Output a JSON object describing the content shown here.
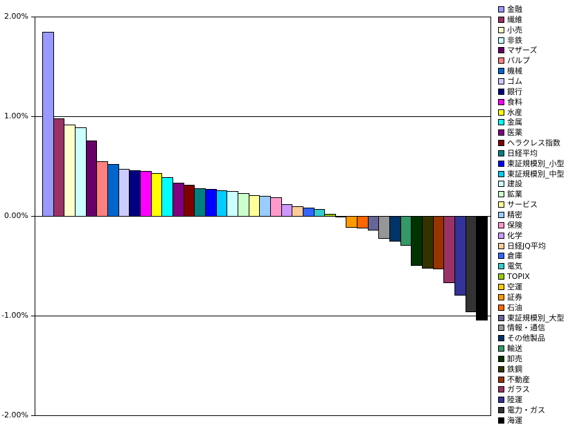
{
  "colors": {
    "background": "#FFFFFF",
    "plot_border": "#000000",
    "gridline": "#000000",
    "text": "#000000"
  },
  "axis": {
    "ticks": [
      {
        "label": "2.00%",
        "value": 2
      },
      {
        "label": "1.00%",
        "value": 1
      },
      {
        "label": "0.00%",
        "value": 0
      },
      {
        "label": "-1.00%",
        "value": -1
      },
      {
        "label": "-2.00%",
        "value": -2
      }
    ]
  },
  "chart_data": {
    "type": "bar",
    "title": "",
    "xlabel": "",
    "ylabel": "",
    "unit": "%",
    "ylim": [
      -2,
      2
    ],
    "grid": true,
    "legend_position": "right",
    "series": [
      {
        "name": "金融",
        "value": 1.85,
        "color": "#9999FF"
      },
      {
        "name": "繊維",
        "value": 0.98,
        "color": "#993366"
      },
      {
        "name": "小売",
        "value": 0.92,
        "color": "#FFFFCC"
      },
      {
        "name": "非鉄",
        "value": 0.89,
        "color": "#CCFFFF"
      },
      {
        "name": "マザーズ",
        "value": 0.76,
        "color": "#660066"
      },
      {
        "name": "パルプ",
        "value": 0.55,
        "color": "#FF8080"
      },
      {
        "name": "機械",
        "value": 0.52,
        "color": "#0066CC"
      },
      {
        "name": "ゴム",
        "value": 0.47,
        "color": "#CCCCFF"
      },
      {
        "name": "銀行",
        "value": 0.46,
        "color": "#000080"
      },
      {
        "name": "食料",
        "value": 0.45,
        "color": "#FF00FF"
      },
      {
        "name": "水産",
        "value": 0.43,
        "color": "#FFFF00"
      },
      {
        "name": "金属",
        "value": 0.39,
        "color": "#00FFFF"
      },
      {
        "name": "医薬",
        "value": 0.33,
        "color": "#800080"
      },
      {
        "name": "ヘラクレス指数",
        "value": 0.31,
        "color": "#800000"
      },
      {
        "name": "日経平均",
        "value": 0.28,
        "color": "#008080"
      },
      {
        "name": "東証規模別_小型",
        "value": 0.27,
        "color": "#0000FF"
      },
      {
        "name": "東証規模別_中型",
        "value": 0.26,
        "color": "#00CCFF"
      },
      {
        "name": "建設",
        "value": 0.25,
        "color": "#CCFFFF"
      },
      {
        "name": "鉱業",
        "value": 0.23,
        "color": "#CCFFCC"
      },
      {
        "name": "サービス",
        "value": 0.21,
        "color": "#FFFF99"
      },
      {
        "name": "精密",
        "value": 0.2,
        "color": "#99CCFF"
      },
      {
        "name": "保険",
        "value": 0.19,
        "color": "#FF99CC"
      },
      {
        "name": "化学",
        "value": 0.12,
        "color": "#CC99FF"
      },
      {
        "name": "日経JQ平均",
        "value": 0.1,
        "color": "#FFCC99"
      },
      {
        "name": "倉庫",
        "value": 0.08,
        "color": "#3366FF"
      },
      {
        "name": "電気",
        "value": 0.07,
        "color": "#33CCCC"
      },
      {
        "name": "TOPIX",
        "value": 0.02,
        "color": "#99CC00"
      },
      {
        "name": "空運",
        "value": -0.01,
        "color": "#FFCC00"
      },
      {
        "name": "証券",
        "value": -0.11,
        "color": "#FF9900"
      },
      {
        "name": "石油",
        "value": -0.12,
        "color": "#FF6600"
      },
      {
        "name": "東証規模別_大型",
        "value": -0.14,
        "color": "#666699"
      },
      {
        "name": "情報・通信",
        "value": -0.22,
        "color": "#969696"
      },
      {
        "name": "その他製品",
        "value": -0.25,
        "color": "#003366"
      },
      {
        "name": "輸送",
        "value": -0.29,
        "color": "#339966"
      },
      {
        "name": "卸売",
        "value": -0.49,
        "color": "#003300"
      },
      {
        "name": "鉄鋼",
        "value": -0.52,
        "color": "#333300"
      },
      {
        "name": "不動産",
        "value": -0.53,
        "color": "#993300"
      },
      {
        "name": "ガラス",
        "value": -0.67,
        "color": "#993366"
      },
      {
        "name": "陸運",
        "value": -0.79,
        "color": "#333399"
      },
      {
        "name": "電力・ガス",
        "value": -0.96,
        "color": "#333333"
      },
      {
        "name": "海運",
        "value": -1.04,
        "color": "#000000"
      }
    ]
  }
}
